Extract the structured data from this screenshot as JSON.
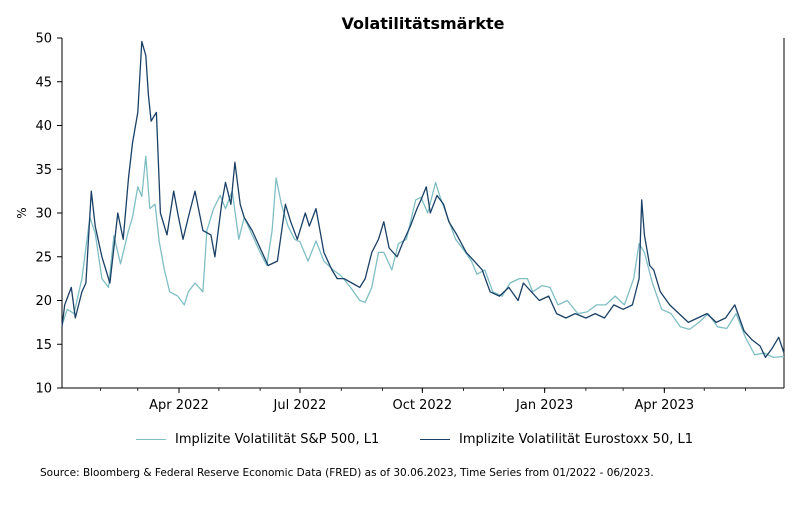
{
  "chart_data": {
    "type": "line",
    "title": "Volatilitätsmärkte",
    "ylabel": "%",
    "xlabel": "",
    "ylim": [
      10,
      50
    ],
    "yticks": [
      10,
      15,
      20,
      25,
      30,
      35,
      40,
      45,
      50
    ],
    "xlim": [
      "2022-01-03",
      "2023-06-30"
    ],
    "xticks": [
      {
        "date": "2022-04-01",
        "label": "Apr 2022"
      },
      {
        "date": "2022-07-01",
        "label": "Jul 2022"
      },
      {
        "date": "2022-10-01",
        "label": "Oct 2022"
      },
      {
        "date": "2023-01-01",
        "label": "Jan 2023"
      },
      {
        "date": "2023-04-01",
        "label": "Apr 2023"
      }
    ],
    "grid": false,
    "legend_position": "bottom",
    "series": [
      {
        "name": "Implizite Volatilität S&P 500, L1",
        "color": "#7fbfc4",
        "points": [
          [
            "2022-01-03",
            17.2
          ],
          [
            "2022-01-07",
            19.0
          ],
          [
            "2022-01-12",
            18.5
          ],
          [
            "2022-01-18",
            22.5
          ],
          [
            "2022-01-24",
            29.5
          ],
          [
            "2022-01-28",
            27.7
          ],
          [
            "2022-02-02",
            22.5
          ],
          [
            "2022-02-07",
            21.5
          ],
          [
            "2022-02-11",
            27.4
          ],
          [
            "2022-02-16",
            24.2
          ],
          [
            "2022-02-22",
            28.0
          ],
          [
            "2022-02-25",
            29.5
          ],
          [
            "2022-03-01",
            33.0
          ],
          [
            "2022-03-04",
            31.9
          ],
          [
            "2022-03-07",
            36.5
          ],
          [
            "2022-03-10",
            30.5
          ],
          [
            "2022-03-14",
            31.0
          ],
          [
            "2022-03-17",
            26.8
          ],
          [
            "2022-03-21",
            23.5
          ],
          [
            "2022-03-25",
            21.0
          ],
          [
            "2022-03-31",
            20.5
          ],
          [
            "2022-04-05",
            19.5
          ],
          [
            "2022-04-08",
            21.0
          ],
          [
            "2022-04-13",
            22.0
          ],
          [
            "2022-04-19",
            21.0
          ],
          [
            "2022-04-22",
            28.0
          ],
          [
            "2022-04-27",
            30.5
          ],
          [
            "2022-05-02",
            32.0
          ],
          [
            "2022-05-06",
            30.5
          ],
          [
            "2022-05-11",
            32.5
          ],
          [
            "2022-05-16",
            27.0
          ],
          [
            "2022-05-20",
            29.5
          ],
          [
            "2022-05-26",
            27.5
          ],
          [
            "2022-06-01",
            25.5
          ],
          [
            "2022-06-06",
            24.0
          ],
          [
            "2022-06-10",
            28.0
          ],
          [
            "2022-06-13",
            34.0
          ],
          [
            "2022-06-17",
            31.0
          ],
          [
            "2022-06-22",
            28.5
          ],
          [
            "2022-06-27",
            27.0
          ],
          [
            "2022-07-01",
            26.7
          ],
          [
            "2022-07-07",
            24.5
          ],
          [
            "2022-07-13",
            26.8
          ],
          [
            "2022-07-19",
            24.5
          ],
          [
            "2022-07-26",
            23.5
          ],
          [
            "2022-08-01",
            22.8
          ],
          [
            "2022-08-08",
            21.5
          ],
          [
            "2022-08-15",
            20.0
          ],
          [
            "2022-08-19",
            19.8
          ],
          [
            "2022-08-24",
            21.5
          ],
          [
            "2022-08-29",
            25.5
          ],
          [
            "2022-09-02",
            25.5
          ],
          [
            "2022-09-08",
            23.5
          ],
          [
            "2022-09-13",
            26.5
          ],
          [
            "2022-09-19",
            27.0
          ],
          [
            "2022-09-26",
            31.5
          ],
          [
            "2022-09-30",
            31.8
          ],
          [
            "2022-10-05",
            30.0
          ],
          [
            "2022-10-11",
            33.5
          ],
          [
            "2022-10-14",
            32.0
          ],
          [
            "2022-10-20",
            29.5
          ],
          [
            "2022-10-26",
            27.0
          ],
          [
            "2022-11-01",
            25.8
          ],
          [
            "2022-11-07",
            24.5
          ],
          [
            "2022-11-11",
            23.0
          ],
          [
            "2022-11-17",
            23.5
          ],
          [
            "2022-11-23",
            21.0
          ],
          [
            "2022-11-30",
            20.5
          ],
          [
            "2022-12-06",
            22.0
          ],
          [
            "2022-12-13",
            22.5
          ],
          [
            "2022-12-19",
            22.5
          ],
          [
            "2022-12-23",
            21.0
          ],
          [
            "2022-12-30",
            21.7
          ],
          [
            "2023-01-05",
            21.5
          ],
          [
            "2023-01-11",
            19.5
          ],
          [
            "2023-01-18",
            20.0
          ],
          [
            "2023-01-26",
            18.5
          ],
          [
            "2023-02-02",
            18.7
          ],
          [
            "2023-02-09",
            19.5
          ],
          [
            "2023-02-16",
            19.5
          ],
          [
            "2023-02-23",
            20.5
          ],
          [
            "2023-03-02",
            19.5
          ],
          [
            "2023-03-09",
            22.5
          ],
          [
            "2023-03-13",
            26.5
          ],
          [
            "2023-03-17",
            25.5
          ],
          [
            "2023-03-23",
            22.0
          ],
          [
            "2023-03-30",
            19.0
          ],
          [
            "2023-04-06",
            18.5
          ],
          [
            "2023-04-13",
            17.0
          ],
          [
            "2023-04-20",
            16.7
          ],
          [
            "2023-04-27",
            17.5
          ],
          [
            "2023-05-04",
            18.5
          ],
          [
            "2023-05-11",
            17.0
          ],
          [
            "2023-05-18",
            16.8
          ],
          [
            "2023-05-25",
            18.5
          ],
          [
            "2023-06-01",
            15.8
          ],
          [
            "2023-06-08",
            13.8
          ],
          [
            "2023-06-15",
            14.0
          ],
          [
            "2023-06-22",
            13.5
          ],
          [
            "2023-06-30",
            13.6
          ]
        ]
      },
      {
        "name": "Implizite Volatilität Eurostoxx 50, L1",
        "color": "#1a4066",
        "points": [
          [
            "2022-01-03",
            17.0
          ],
          [
            "2022-01-05",
            19.5
          ],
          [
            "2022-01-10",
            21.5
          ],
          [
            "2022-01-13",
            18.0
          ],
          [
            "2022-01-18",
            21.0
          ],
          [
            "2022-01-21",
            22.0
          ],
          [
            "2022-01-25",
            32.5
          ],
          [
            "2022-01-28",
            28.5
          ],
          [
            "2022-02-02",
            25.0
          ],
          [
            "2022-02-08",
            22.0
          ],
          [
            "2022-02-14",
            30.0
          ],
          [
            "2022-02-18",
            27.0
          ],
          [
            "2022-02-22",
            34.0
          ],
          [
            "2022-02-25",
            38.0
          ],
          [
            "2022-03-01",
            41.5
          ],
          [
            "2022-03-04",
            49.6
          ],
          [
            "2022-03-07",
            48.0
          ],
          [
            "2022-03-09",
            43.5
          ],
          [
            "2022-03-11",
            40.5
          ],
          [
            "2022-03-15",
            41.5
          ],
          [
            "2022-03-18",
            30.0
          ],
          [
            "2022-03-23",
            27.5
          ],
          [
            "2022-03-28",
            32.5
          ],
          [
            "2022-03-31",
            30.0
          ],
          [
            "2022-04-04",
            27.0
          ],
          [
            "2022-04-08",
            29.5
          ],
          [
            "2022-04-13",
            32.5
          ],
          [
            "2022-04-19",
            28.0
          ],
          [
            "2022-04-25",
            27.5
          ],
          [
            "2022-04-28",
            25.0
          ],
          [
            "2022-05-03",
            31.0
          ],
          [
            "2022-05-06",
            33.5
          ],
          [
            "2022-05-10",
            31.0
          ],
          [
            "2022-05-13",
            35.8
          ],
          [
            "2022-05-17",
            31.0
          ],
          [
            "2022-05-20",
            29.5
          ],
          [
            "2022-05-26",
            28.0
          ],
          [
            "2022-06-01",
            26.0
          ],
          [
            "2022-06-07",
            24.0
          ],
          [
            "2022-06-14",
            24.5
          ],
          [
            "2022-06-20",
            31.0
          ],
          [
            "2022-06-24",
            29.0
          ],
          [
            "2022-06-29",
            27.0
          ],
          [
            "2022-07-05",
            30.0
          ],
          [
            "2022-07-08",
            28.5
          ],
          [
            "2022-07-13",
            30.5
          ],
          [
            "2022-07-19",
            25.5
          ],
          [
            "2022-07-25",
            23.5
          ],
          [
            "2022-07-29",
            22.5
          ],
          [
            "2022-08-03",
            22.5
          ],
          [
            "2022-08-09",
            22.0
          ],
          [
            "2022-08-15",
            21.5
          ],
          [
            "2022-08-19",
            22.5
          ],
          [
            "2022-08-24",
            25.5
          ],
          [
            "2022-08-29",
            27.0
          ],
          [
            "2022-09-02",
            29.0
          ],
          [
            "2022-09-06",
            26.0
          ],
          [
            "2022-09-12",
            25.0
          ],
          [
            "2022-09-16",
            26.5
          ],
          [
            "2022-09-22",
            28.5
          ],
          [
            "2022-09-27",
            30.5
          ],
          [
            "2022-09-30",
            31.5
          ],
          [
            "2022-10-04",
            33.0
          ],
          [
            "2022-10-07",
            30.0
          ],
          [
            "2022-10-12",
            32.0
          ],
          [
            "2022-10-17",
            31.0
          ],
          [
            "2022-10-21",
            29.0
          ],
          [
            "2022-10-27",
            27.5
          ],
          [
            "2022-11-03",
            25.5
          ],
          [
            "2022-11-09",
            24.5
          ],
          [
            "2022-11-15",
            23.5
          ],
          [
            "2022-11-21",
            21.0
          ],
          [
            "2022-11-28",
            20.5
          ],
          [
            "2022-12-05",
            21.5
          ],
          [
            "2022-12-12",
            20.0
          ],
          [
            "2022-12-16",
            22.0
          ],
          [
            "2022-12-22",
            21.0
          ],
          [
            "2022-12-28",
            20.0
          ],
          [
            "2023-01-04",
            20.5
          ],
          [
            "2023-01-10",
            18.5
          ],
          [
            "2023-01-17",
            18.0
          ],
          [
            "2023-01-24",
            18.5
          ],
          [
            "2023-02-01",
            18.0
          ],
          [
            "2023-02-08",
            18.5
          ],
          [
            "2023-02-15",
            18.0
          ],
          [
            "2023-02-22",
            19.5
          ],
          [
            "2023-03-01",
            19.0
          ],
          [
            "2023-03-08",
            19.5
          ],
          [
            "2023-03-13",
            22.5
          ],
          [
            "2023-03-15",
            31.5
          ],
          [
            "2023-03-17",
            27.5
          ],
          [
            "2023-03-21",
            24.0
          ],
          [
            "2023-03-24",
            23.5
          ],
          [
            "2023-03-29",
            21.0
          ],
          [
            "2023-04-05",
            19.5
          ],
          [
            "2023-04-12",
            18.5
          ],
          [
            "2023-04-19",
            17.5
          ],
          [
            "2023-04-26",
            18.0
          ],
          [
            "2023-05-03",
            18.5
          ],
          [
            "2023-05-10",
            17.5
          ],
          [
            "2023-05-17",
            18.0
          ],
          [
            "2023-05-24",
            19.5
          ],
          [
            "2023-05-31",
            16.5
          ],
          [
            "2023-06-06",
            15.5
          ],
          [
            "2023-06-12",
            14.8
          ],
          [
            "2023-06-16",
            13.5
          ],
          [
            "2023-06-21",
            14.5
          ],
          [
            "2023-06-26",
            15.8
          ],
          [
            "2023-06-30",
            14.0
          ]
        ]
      }
    ]
  },
  "source": "Source: Bloomberg & Federal Reserve Economic Data (FRED) as of 30.06.2023, Time Series from 01/2022 - 06/2023."
}
